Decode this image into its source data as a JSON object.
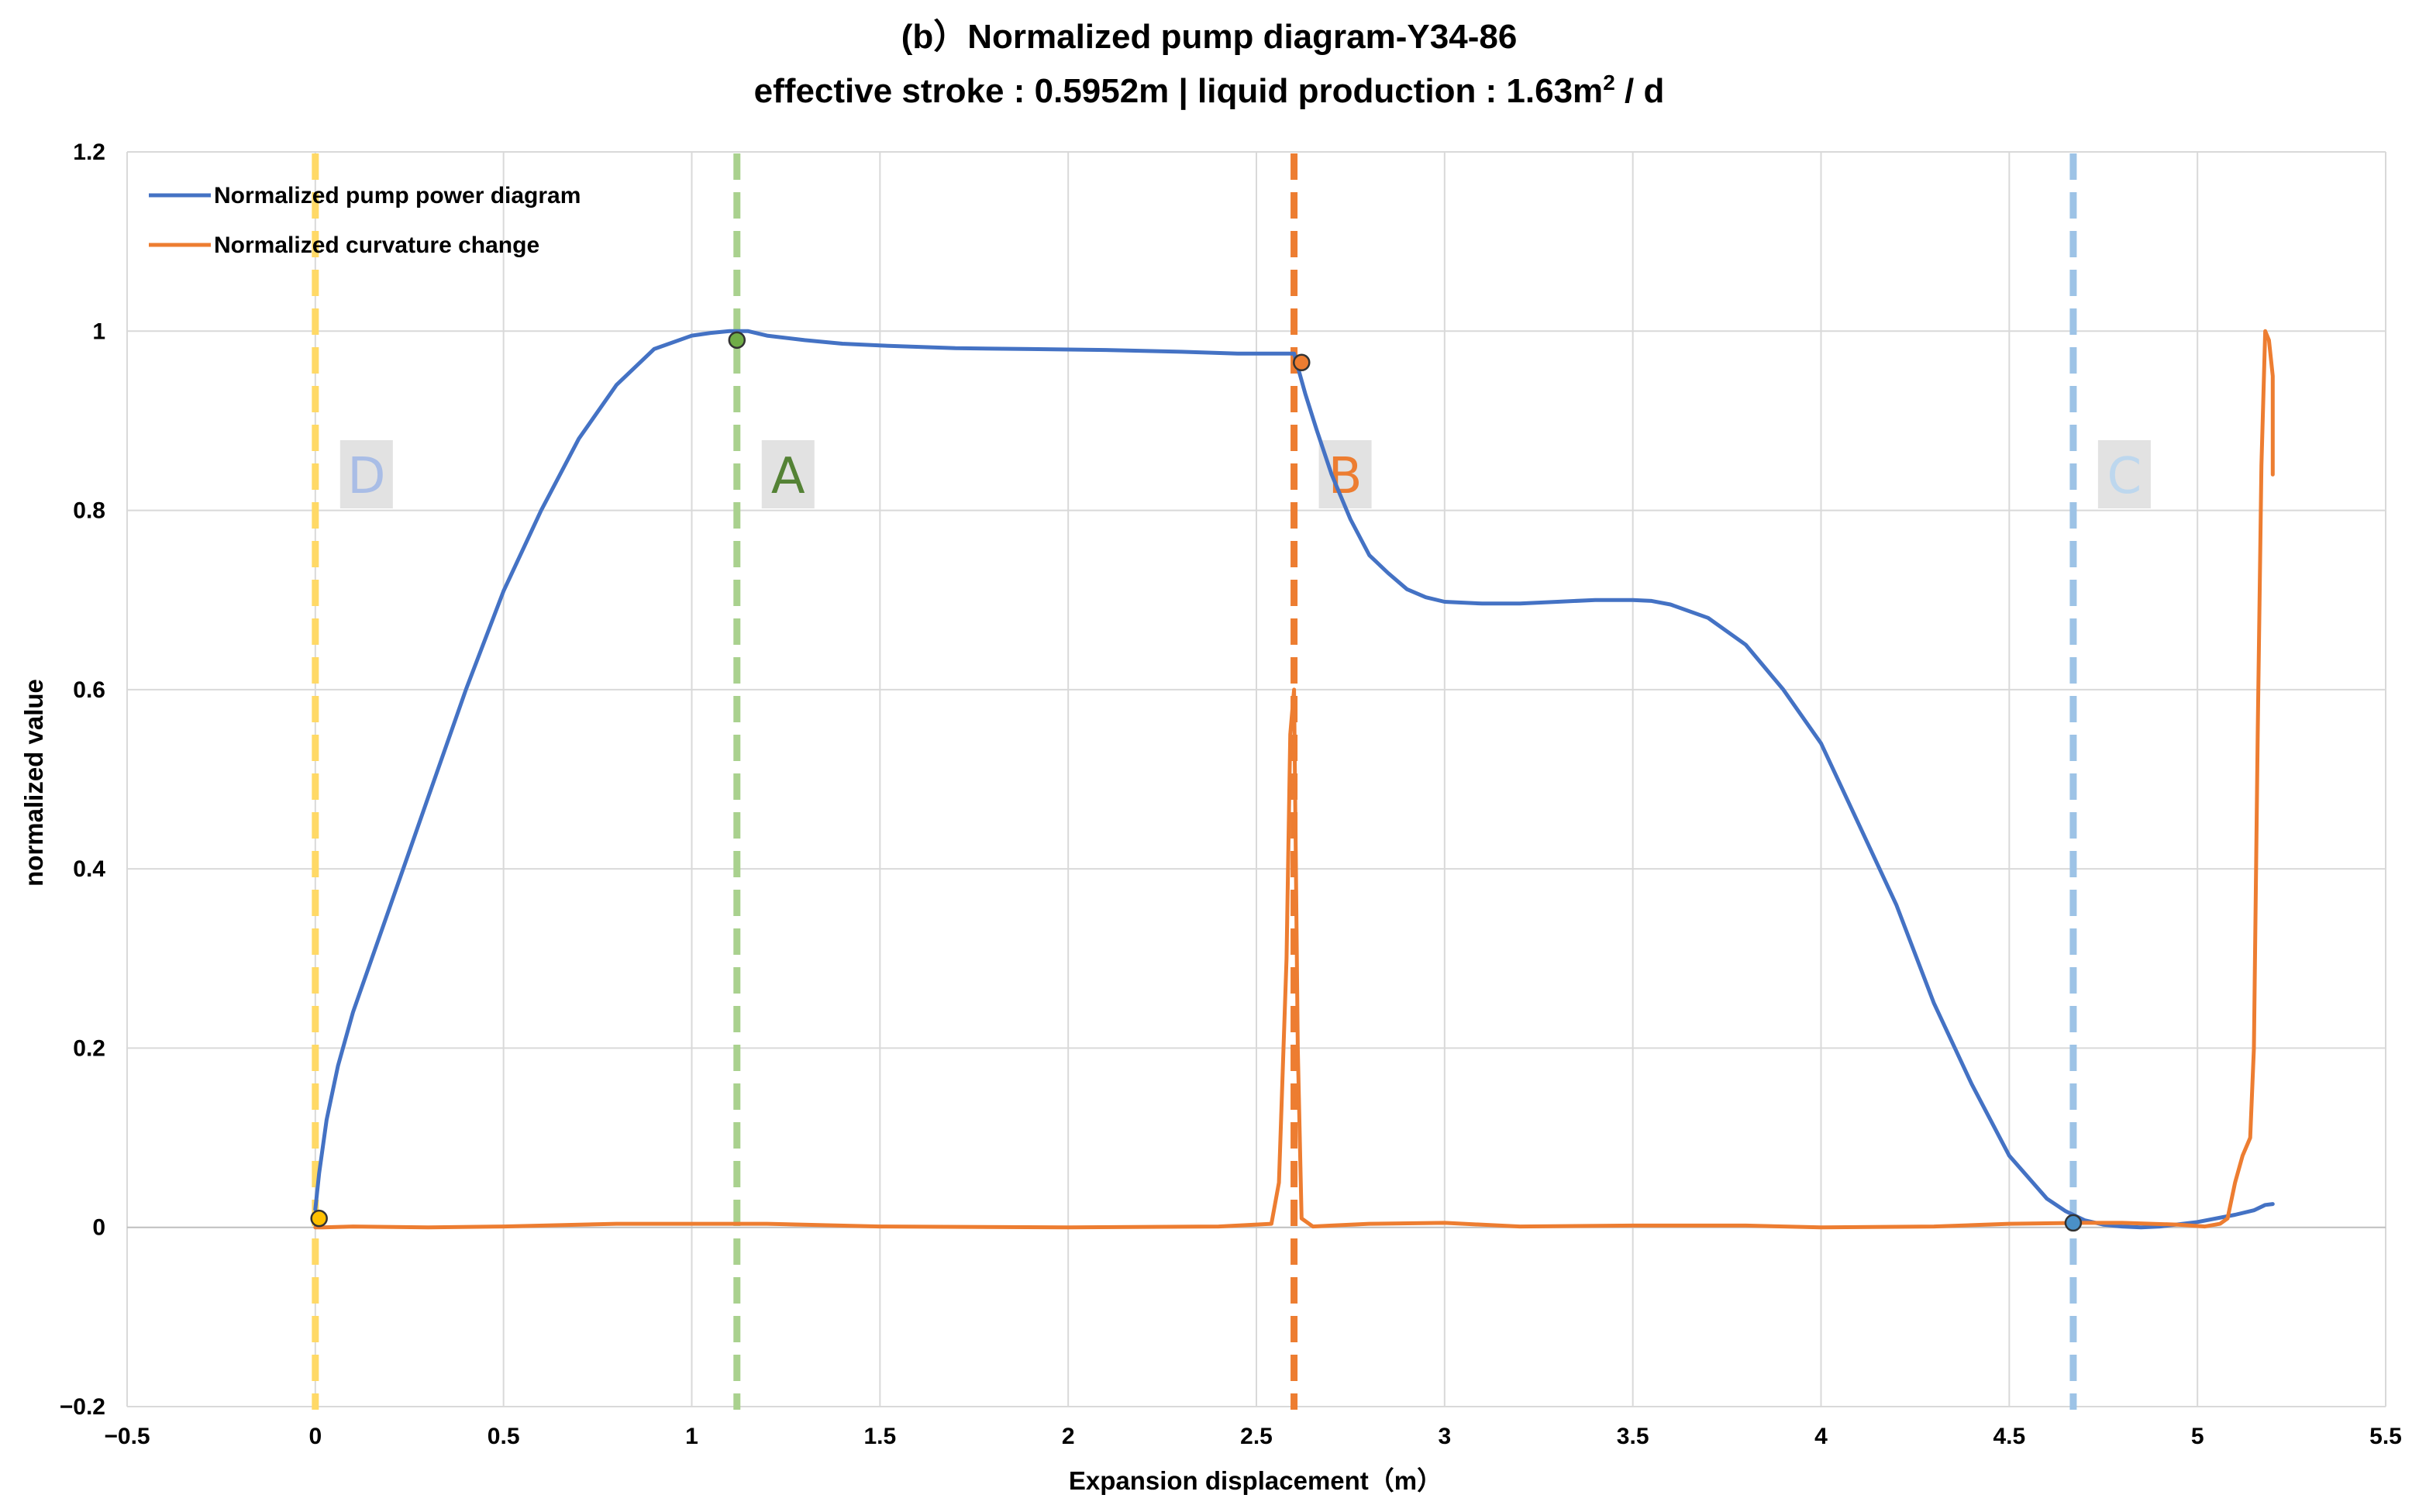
{
  "chart_data": {
    "type": "line",
    "title": "(b）Normalized pump diagram-Y34-86",
    "subtitle_prefix": "effective stroke : 0.5952m | liquid production : 1.63m",
    "subtitle_sup": "2",
    "subtitle_suffix": " / d",
    "xlabel": "Expansion displacement（m）",
    "ylabel": "normalized value",
    "xlim": [
      -0.5,
      5.5
    ],
    "ylim": [
      -0.2,
      1.2
    ],
    "x_ticks": [
      -0.5,
      0,
      0.5,
      1,
      1.5,
      2,
      2.5,
      3,
      3.5,
      4,
      4.5,
      5,
      5.5
    ],
    "x_tick_labels": [
      "−0.5",
      "0",
      "0.5",
      "1",
      "1.5",
      "2",
      "2.5",
      "3",
      "3.5",
      "4",
      "4.5",
      "5",
      "5.5"
    ],
    "y_ticks": [
      -0.2,
      0,
      0.2,
      0.4,
      0.6,
      0.8,
      1,
      1.2
    ],
    "y_tick_labels": [
      "−0.2",
      "0",
      "0.2",
      "0.4",
      "0.6",
      "0.8",
      "1",
      "1.2"
    ],
    "grid": true,
    "legend_position": "top-left",
    "series": [
      {
        "name": "Normalized pump power diagram",
        "color": "#4472c4",
        "x": [
          0.0,
          0.01,
          0.03,
          0.06,
          0.1,
          0.15,
          0.2,
          0.25,
          0.3,
          0.4,
          0.5,
          0.6,
          0.7,
          0.8,
          0.9,
          1.0,
          1.05,
          1.1,
          1.15,
          1.2,
          1.3,
          1.4,
          1.5,
          1.7,
          1.9,
          2.1,
          2.3,
          2.45,
          2.55,
          2.6,
          2.61,
          2.63,
          2.66,
          2.7,
          2.75,
          2.8,
          2.85,
          2.9,
          2.95,
          3.0,
          3.1,
          3.2,
          3.3,
          3.4,
          3.5,
          3.55,
          3.6,
          3.7,
          3.8,
          3.9,
          4.0,
          4.1,
          4.2,
          4.3,
          4.4,
          4.5,
          4.6,
          4.65,
          4.7,
          4.75,
          4.8,
          4.85,
          4.9,
          5.0,
          5.1,
          5.15,
          5.18,
          5.2
        ],
        "y": [
          0.02,
          0.06,
          0.12,
          0.18,
          0.24,
          0.3,
          0.36,
          0.42,
          0.48,
          0.6,
          0.71,
          0.8,
          0.88,
          0.94,
          0.98,
          0.995,
          0.998,
          1.0,
          1.0,
          0.995,
          0.99,
          0.986,
          0.984,
          0.981,
          0.98,
          0.979,
          0.977,
          0.975,
          0.975,
          0.975,
          0.96,
          0.93,
          0.89,
          0.84,
          0.79,
          0.75,
          0.73,
          0.712,
          0.703,
          0.698,
          0.696,
          0.696,
          0.698,
          0.7,
          0.7,
          0.699,
          0.695,
          0.68,
          0.65,
          0.6,
          0.54,
          0.45,
          0.36,
          0.25,
          0.16,
          0.08,
          0.032,
          0.018,
          0.008,
          0.003,
          0.001,
          0.0,
          0.001,
          0.006,
          0.014,
          0.019,
          0.025,
          0.026
        ]
      },
      {
        "name": "Normalized curvature change",
        "color": "#ed7d31",
        "x": [
          0.0,
          0.02,
          0.1,
          0.3,
          0.5,
          0.8,
          1.0,
          1.2,
          1.5,
          2.0,
          2.4,
          2.54,
          2.56,
          2.58,
          2.59,
          2.6,
          2.61,
          2.62,
          2.65,
          2.7,
          2.8,
          3.0,
          3.2,
          3.5,
          3.8,
          4.0,
          4.3,
          4.5,
          4.7,
          4.8,
          4.95,
          5.02,
          5.06,
          5.08,
          5.1,
          5.12,
          5.14,
          5.15,
          5.16,
          5.17,
          5.18,
          5.19,
          5.2,
          5.2
        ],
        "y": [
          0.0,
          0.0,
          0.001,
          0.0,
          0.001,
          0.004,
          0.004,
          0.004,
          0.001,
          0.0,
          0.001,
          0.004,
          0.05,
          0.3,
          0.55,
          0.6,
          0.2,
          0.01,
          0.001,
          0.002,
          0.004,
          0.005,
          0.001,
          0.002,
          0.002,
          0.0,
          0.001,
          0.004,
          0.005,
          0.005,
          0.003,
          0.001,
          0.004,
          0.01,
          0.05,
          0.08,
          0.1,
          0.2,
          0.55,
          0.85,
          1.0,
          0.99,
          0.95,
          0.84
        ]
      }
    ],
    "reference_lines": [
      {
        "label": "D",
        "x": 0.0,
        "color": "#ffd966",
        "label_color": "#a9bde6"
      },
      {
        "label": "A",
        "x": 1.12,
        "color": "#a9d18e",
        "label_color": "#548235"
      },
      {
        "label": "B",
        "x": 2.6,
        "color": "#ed7d31",
        "label_color": "#ed7d31"
      },
      {
        "label": "C",
        "x": 4.67,
        "color": "#9dc3e6",
        "label_color": "#bdd7ee"
      }
    ],
    "points": [
      {
        "x": 0.01,
        "y": 0.01,
        "color": "#ffc000"
      },
      {
        "x": 1.12,
        "y": 0.99,
        "color": "#70ad47"
      },
      {
        "x": 2.62,
        "y": 0.965,
        "color": "#ed7d31"
      },
      {
        "x": 4.67,
        "y": 0.005,
        "color": "#4a90c8"
      }
    ]
  }
}
